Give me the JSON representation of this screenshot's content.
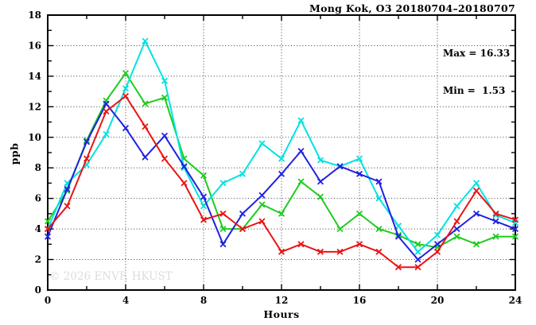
{
  "title": "Mong Kok, O3 20180704–20180707",
  "stats": {
    "max_label": "Max = 16.33",
    "min_label": "Min =  1.53"
  },
  "watermark": "© 2026 ENVF, HKUST",
  "chart_data": {
    "type": "line",
    "title": "Mong Kok, O3 20180704–20180707",
    "xlabel": "Hours",
    "ylabel": "ppb",
    "xlim": [
      0,
      24
    ],
    "ylim": [
      0,
      18
    ],
    "x_major_ticks": [
      0,
      4,
      8,
      12,
      16,
      20,
      24
    ],
    "x_minor_ticks": [
      2,
      6,
      10,
      14,
      18,
      22
    ],
    "y_major_ticks": [
      0,
      2,
      4,
      6,
      8,
      10,
      12,
      14,
      16,
      18
    ],
    "y_minor_ticks": [
      1,
      3,
      5,
      7,
      9,
      11,
      13,
      15,
      17
    ],
    "grid": "dotted",
    "legend": "none",
    "marker": "x",
    "max": 16.33,
    "min": 1.53,
    "x": [
      0,
      1,
      2,
      3,
      4,
      5,
      6,
      7,
      8,
      9,
      10,
      11,
      12,
      13,
      14,
      15,
      16,
      17,
      18,
      19,
      20,
      21,
      22,
      23,
      24
    ],
    "series": [
      {
        "name": "green-line",
        "color": "#1ecc1e",
        "values": [
          4.5,
          6.5,
          9.8,
          12.4,
          14.2,
          12.2,
          12.6,
          8.6,
          7.5,
          4.0,
          4.0,
          5.6,
          5.0,
          7.1,
          6.1,
          4.0,
          5.0,
          4.0,
          3.6,
          3.0,
          2.8,
          3.5,
          3.0,
          3.5,
          3.5
        ]
      },
      {
        "name": "cyan-line",
        "color": "#00e2e2",
        "values": [
          4.0,
          7.0,
          8.2,
          10.2,
          13.2,
          16.3,
          13.7,
          8.0,
          5.5,
          7.0,
          7.6,
          9.6,
          8.6,
          11.1,
          8.5,
          8.1,
          8.6,
          6.0,
          4.2,
          2.5,
          3.6,
          5.5,
          7.0,
          4.9,
          4.4
        ]
      },
      {
        "name": "blue-line",
        "color": "#2121e0",
        "values": [
          3.5,
          6.6,
          9.7,
          12.2,
          10.6,
          8.7,
          10.1,
          8.1,
          6.1,
          3.0,
          5.0,
          6.2,
          7.6,
          9.1,
          7.1,
          8.1,
          7.6,
          7.1,
          3.5,
          2.0,
          3.0,
          4.0,
          5.0,
          4.5,
          4.0
        ]
      },
      {
        "name": "red-line",
        "color": "#ea1414",
        "values": [
          4.0,
          5.5,
          8.6,
          11.7,
          12.7,
          10.7,
          8.6,
          7.0,
          4.6,
          5.0,
          4.0,
          4.5,
          2.5,
          3.0,
          2.5,
          2.5,
          3.0,
          2.5,
          1.5,
          1.5,
          2.5,
          4.5,
          6.5,
          5.0,
          4.6
        ]
      }
    ]
  }
}
